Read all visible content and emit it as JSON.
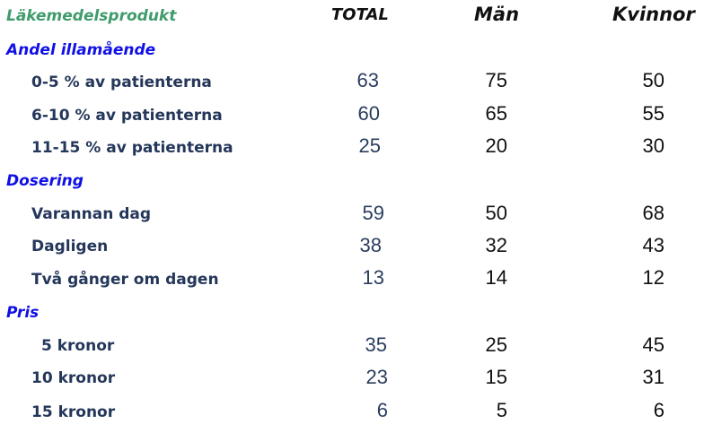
{
  "header": {
    "product": "Läkemedelsprodukt",
    "total": "TOTAL",
    "man": "Män",
    "kvinnor": "Kvinnor"
  },
  "sections": [
    {
      "title": "Andel illamående",
      "rows": [
        {
          "label": "0-5 % av patienterna",
          "total": "63",
          "man": "75",
          "kvinnor": "50"
        },
        {
          "label": "6-10 % av patienterna",
          "total": "60",
          "man": "65",
          "kvinnor": "55"
        },
        {
          "label": "11-15 % av patienterna",
          "total": "25",
          "man": "20",
          "kvinnor": "30"
        }
      ]
    },
    {
      "title": "Dosering",
      "rows": [
        {
          "label": "Varannan dag",
          "total": "59",
          "man": "50",
          "kvinnor": "68"
        },
        {
          "label": "Dagligen",
          "total": "38",
          "man": "32",
          "kvinnor": "43"
        },
        {
          "label": "Två gånger om dagen",
          "total": "13",
          "man": "14",
          "kvinnor": "12"
        }
      ]
    },
    {
      "title": "Pris",
      "rows": [
        {
          "label": "5 kronor",
          "total": "35",
          "man": "25",
          "kvinnor": "45"
        },
        {
          "label": "10 kronor",
          "total": "23",
          "man": "15",
          "kvinnor": "31"
        },
        {
          "label": "15 kronor",
          "total": "6",
          "man": "5",
          "kvinnor": "6"
        }
      ]
    }
  ]
}
